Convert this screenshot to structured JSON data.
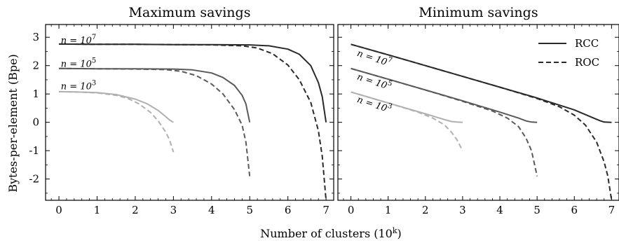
{
  "figure": {
    "xlabel": "Number of clusters (10",
    "xlabel_sup": "k",
    "xlabel_close": ")",
    "ylabel": "Bytes-per-element (Bpe)"
  },
  "legend": [
    {
      "label": "RCC",
      "dash": "solid"
    },
    {
      "label": "ROC",
      "dash": "dashed"
    }
  ],
  "chart_data": [
    {
      "type": "line",
      "title": "Maximum savings",
      "xlim": [
        -0.35,
        7.2
      ],
      "ylim": [
        -2.75,
        3.45
      ],
      "xticks": [
        0,
        1,
        2,
        3,
        4,
        5,
        6,
        7
      ],
      "yticks": [
        -2,
        -1,
        0,
        1,
        2,
        3
      ],
      "yticklabels": [
        "-2",
        "-1",
        "0",
        "1",
        "2",
        "3"
      ],
      "annotations": [
        {
          "base": "n = 10",
          "exp": "7",
          "x": 0.05,
          "y": 2.78
        },
        {
          "base": "n = 10",
          "exp": "5",
          "x": 0.05,
          "y": 1.96
        },
        {
          "base": "n = 10",
          "exp": "3",
          "x": 0.05,
          "y": 1.16
        }
      ],
      "series": [
        {
          "group": "1e7",
          "style": "RCC",
          "color": "#2a2a2a",
          "x": [
            0,
            1,
            2,
            3,
            4,
            5,
            5.5,
            6,
            6.3,
            6.6,
            6.8,
            6.9,
            7.0
          ],
          "y": [
            2.76,
            2.75,
            2.75,
            2.74,
            2.74,
            2.73,
            2.7,
            2.58,
            2.4,
            2.0,
            1.4,
            0.9,
            0.0
          ]
        },
        {
          "group": "1e7",
          "style": "ROC",
          "color": "#2a2a2a",
          "x": [
            0,
            1,
            2,
            3,
            4,
            4.8,
            5.2,
            5.6,
            6.0,
            6.3,
            6.6,
            6.8,
            6.9,
            7.0
          ],
          "y": [
            2.76,
            2.75,
            2.75,
            2.74,
            2.73,
            2.7,
            2.62,
            2.42,
            2.02,
            1.5,
            0.7,
            -0.3,
            -1.2,
            -2.75
          ]
        },
        {
          "group": "1e5",
          "style": "RCC",
          "color": "#5a5a5a",
          "x": [
            0,
            1,
            2,
            3,
            3.5,
            4.0,
            4.3,
            4.6,
            4.8,
            4.9,
            5.0
          ],
          "y": [
            1.9,
            1.89,
            1.89,
            1.88,
            1.85,
            1.74,
            1.58,
            1.3,
            0.95,
            0.65,
            0.0
          ]
        },
        {
          "group": "1e5",
          "style": "ROC",
          "color": "#5a5a5a",
          "x": [
            0,
            1,
            2,
            2.8,
            3.2,
            3.6,
            4.0,
            4.3,
            4.6,
            4.8,
            4.9,
            5.0
          ],
          "y": [
            1.9,
            1.89,
            1.88,
            1.86,
            1.8,
            1.65,
            1.35,
            1.0,
            0.45,
            -0.1,
            -0.7,
            -1.9
          ]
        },
        {
          "group": "1e3",
          "style": "RCC",
          "color": "#b0b0b0",
          "x": [
            0,
            0.5,
            1.0,
            1.5,
            2.0,
            2.3,
            2.6,
            2.8,
            2.9,
            3.0
          ],
          "y": [
            1.08,
            1.07,
            1.05,
            0.98,
            0.82,
            0.66,
            0.42,
            0.2,
            0.08,
            0.0
          ]
        },
        {
          "group": "1e3",
          "style": "ROC",
          "color": "#b0b0b0",
          "x": [
            0,
            0.5,
            1.0,
            1.5,
            1.8,
            2.1,
            2.4,
            2.6,
            2.8,
            2.9,
            3.0
          ],
          "y": [
            1.08,
            1.07,
            1.04,
            0.95,
            0.85,
            0.65,
            0.35,
            0.05,
            -0.35,
            -0.62,
            -1.05
          ]
        }
      ]
    },
    {
      "type": "line",
      "title": "Minimum savings",
      "xlim": [
        -0.35,
        7.2
      ],
      "ylim": [
        -2.75,
        3.45
      ],
      "xticks": [
        0,
        1,
        2,
        3,
        4,
        5,
        6,
        7
      ],
      "yticks": [
        -2,
        -1,
        0,
        1,
        2,
        3
      ],
      "yticklabels": [],
      "annotations": [
        {
          "base": "n = 10",
          "exp": "7",
          "x": 0.15,
          "y": 2.35,
          "angle": 18
        },
        {
          "base": "n = 10",
          "exp": "5",
          "x": 0.15,
          "y": 1.52,
          "angle": 18
        },
        {
          "base": "n = 10",
          "exp": "3",
          "x": 0.15,
          "y": 0.72,
          "angle": 18
        }
      ],
      "series": [
        {
          "group": "1e7",
          "style": "RCC",
          "color": "#2a2a2a",
          "x": [
            0,
            1,
            2,
            3,
            4,
            5,
            6,
            6.5,
            6.7,
            6.8,
            7.0
          ],
          "y": [
            2.75,
            2.38,
            2.0,
            1.62,
            1.24,
            0.86,
            0.44,
            0.16,
            0.05,
            0.01,
            0.0
          ]
        },
        {
          "group": "1e7",
          "style": "ROC",
          "color": "#2a2a2a",
          "x": [
            0,
            1,
            2,
            3,
            4,
            5,
            5.6,
            6.0,
            6.3,
            6.6,
            6.8,
            6.9,
            7.0
          ],
          "y": [
            2.75,
            2.38,
            2.0,
            1.62,
            1.24,
            0.84,
            0.55,
            0.25,
            -0.1,
            -0.7,
            -1.4,
            -1.9,
            -2.75
          ]
        },
        {
          "group": "1e5",
          "style": "RCC",
          "color": "#5a5a5a",
          "x": [
            0,
            1,
            2,
            3,
            4,
            4.5,
            4.7,
            4.85,
            5.0
          ],
          "y": [
            1.9,
            1.52,
            1.14,
            0.76,
            0.36,
            0.15,
            0.05,
            0.01,
            0.0
          ]
        },
        {
          "group": "1e5",
          "style": "ROC",
          "color": "#5a5a5a",
          "x": [
            0,
            1,
            2,
            3,
            3.8,
            4.2,
            4.5,
            4.7,
            4.85,
            5.0
          ],
          "y": [
            1.9,
            1.52,
            1.14,
            0.74,
            0.4,
            0.15,
            -0.15,
            -0.55,
            -1.0,
            -1.9
          ]
        },
        {
          "group": "1e3",
          "style": "RCC",
          "color": "#b0b0b0",
          "x": [
            0,
            1,
            2,
            2.5,
            2.7,
            2.85,
            3.0
          ],
          "y": [
            1.07,
            0.68,
            0.3,
            0.1,
            0.03,
            0.01,
            0.0
          ]
        },
        {
          "group": "1e3",
          "style": "ROC",
          "color": "#b0b0b0",
          "x": [
            0,
            1,
            1.8,
            2.2,
            2.5,
            2.7,
            2.85,
            3.0
          ],
          "y": [
            1.07,
            0.68,
            0.36,
            0.15,
            -0.08,
            -0.35,
            -0.62,
            -1.0
          ]
        }
      ]
    }
  ]
}
